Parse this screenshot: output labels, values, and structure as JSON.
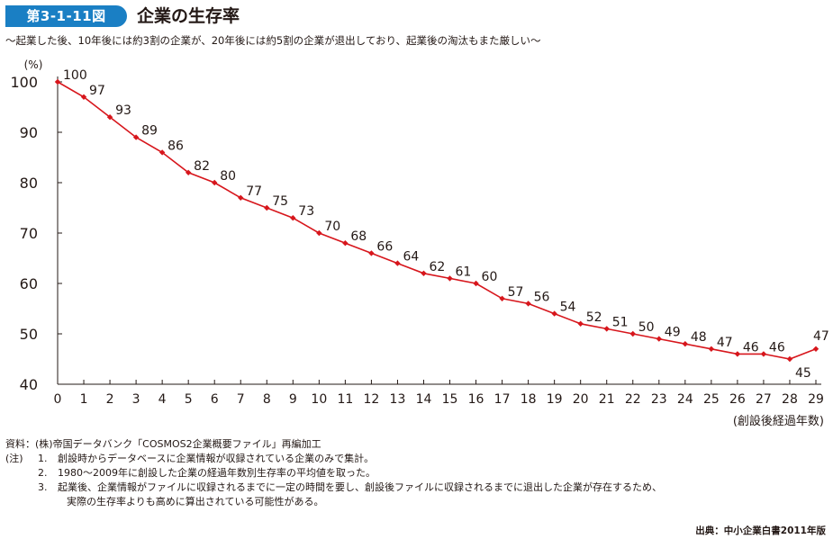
{
  "header": {
    "badge": "第3-1-11図",
    "title": "企業の生存率",
    "subtitle": "〜起業した後、10年後には約3割の企業が、20年後には約5割の企業が退出しており、起業後の淘汰もまた厳しい〜"
  },
  "chart_data": {
    "type": "line",
    "x": [
      0,
      1,
      2,
      3,
      4,
      5,
      6,
      7,
      8,
      9,
      10,
      11,
      12,
      13,
      14,
      15,
      16,
      17,
      18,
      19,
      20,
      21,
      22,
      23,
      24,
      25,
      26,
      27,
      28,
      29
    ],
    "values": [
      100,
      97,
      93,
      89,
      86,
      82,
      80,
      77,
      75,
      73,
      70,
      68,
      66,
      64,
      62,
      61,
      60,
      57,
      56,
      54,
      52,
      51,
      50,
      49,
      48,
      47,
      46,
      46,
      45,
      47
    ],
    "data_labels": [
      "100",
      "97",
      "93",
      "89",
      "86",
      "82",
      "80",
      "77",
      "75",
      "73",
      "70",
      "68",
      "66",
      "64",
      "62",
      "61",
      "60",
      "57",
      "56",
      "54",
      "52",
      "51",
      "50",
      "49",
      "48",
      "47",
      "46",
      "46",
      "45",
      "47"
    ],
    "ylabel": "(%)",
    "xlabel": "(創設後経過年数)",
    "ylim": [
      40,
      100
    ],
    "yticks": [
      40,
      50,
      60,
      70,
      80,
      90,
      100
    ],
    "xticks": [
      0,
      1,
      2,
      3,
      4,
      5,
      6,
      7,
      8,
      9,
      10,
      11,
      12,
      13,
      14,
      15,
      16,
      17,
      18,
      19,
      20,
      21,
      22,
      23,
      24,
      25,
      26,
      27,
      28,
      29
    ],
    "grid": false,
    "line_color": "#d7161c"
  },
  "notes": {
    "source_label": "資料：(株)帝国データバンク「COSMOS2企業概要ファイル」再編加工",
    "note_prefix": "(注)",
    "note_1_num": "1.",
    "note_1": "創設時からデータベースに企業情報が収録されている企業のみで集計。",
    "note_2_num": "2.",
    "note_2": "1980〜2009年に創設した企業の経過年数別生存率の平均値を取った。",
    "note_3_num": "3.",
    "note_3a": "起業後、企業情報がファイルに収録されるまでに一定の時間を要し、創設後ファイルに収録されるまでに退出した企業が存在するため、",
    "note_3b": "実際の生存率よりも高めに算出されている可能性がある。"
  },
  "footer": {
    "source": "出典：中小企業白書2011年版"
  }
}
